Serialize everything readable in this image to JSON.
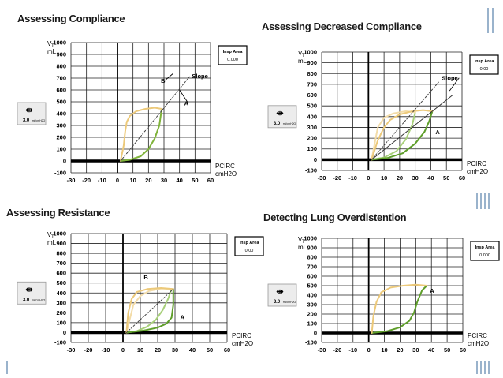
{
  "slide": {
    "accent_color": "#9ab3cc"
  },
  "chart_data": [
    {
      "type": "line",
      "title": "Assessing Compliance",
      "ylabel": "VT mL",
      "xlabel": "PCIRC cmH2O",
      "ylabel_main": "V",
      "ylabel_sub": "T",
      "ylabel_unit": "mL",
      "xlabel_main": "PCIRC",
      "xlabel_unit": "cmH2O",
      "xlim": [
        -30,
        60
      ],
      "ylim": [
        -100,
        1000
      ],
      "x_ticks": [
        "-30",
        "-20",
        "-10",
        "0",
        "10",
        "20",
        "30",
        "40",
        "50",
        "60"
      ],
      "y_ticks": [
        "-100",
        "0",
        "100",
        "200",
        "300",
        "400",
        "500",
        "600",
        "700",
        "800",
        "900",
        "1000"
      ],
      "grid": true,
      "insp_box": {
        "label": "Insp Area",
        "value": "0.000"
      },
      "scale_widget": {
        "value": "3.0",
        "unit": "ml/cmH2O",
        "icon": "scale-arrows-icon"
      },
      "series": [
        {
          "role": "inspiration",
          "color": "#7fb33a",
          "x": [
            2,
            8,
            15,
            20,
            24,
            27,
            28.5
          ],
          "y": [
            0,
            10,
            40,
            100,
            190,
            300,
            440
          ]
        },
        {
          "role": "expiration",
          "color": "#ecc97a",
          "x": [
            28.5,
            24,
            18,
            12,
            8,
            6,
            5,
            4,
            2
          ],
          "y": [
            440,
            450,
            440,
            420,
            380,
            330,
            250,
            130,
            0
          ]
        },
        {
          "role": "slope",
          "style": "dashed",
          "x": [
            2,
            47
          ],
          "y": [
            0,
            720
          ]
        }
      ],
      "annotations": [
        {
          "text": "Slope",
          "x": 48,
          "y": 720
        },
        {
          "text": "B",
          "x": 28,
          "y": 680,
          "arrow_to": [
            36,
            740
          ]
        },
        {
          "text": "A",
          "x": 43,
          "y": 490,
          "arrow_to": [
            40,
            600
          ]
        }
      ]
    },
    {
      "type": "line",
      "title": "Assessing Decreased Compliance",
      "ylabel_main": "V",
      "ylabel_sub": "T",
      "ylabel_unit": "mL",
      "xlabel_main": "PCIRC",
      "xlabel_unit": "cmH2O",
      "xlim": [
        -30,
        60
      ],
      "ylim": [
        -100,
        1000
      ],
      "x_ticks": [
        "-30",
        "-20",
        "-10",
        "0",
        "10",
        "20",
        "30",
        "40",
        "50",
        "60"
      ],
      "y_ticks": [
        "-100",
        "0",
        "100",
        "200",
        "300",
        "400",
        "500",
        "600",
        "700",
        "800",
        "900",
        "1000"
      ],
      "grid": true,
      "insp_box": {
        "label": "Insp Area",
        "value": "0.00"
      },
      "scale_widget": {
        "value": "3.0",
        "unit": "ml/cmH2O",
        "icon": "scale-arrows-icon"
      },
      "series": [
        {
          "role": "inspiration-baseline",
          "color": "#a8d07a",
          "x": [
            2,
            10,
            18,
            24,
            28,
            30
          ],
          "y": [
            0,
            20,
            80,
            190,
            320,
            440
          ]
        },
        {
          "role": "expiration-baseline",
          "color": "#f3dca8",
          "x": [
            30,
            24,
            16,
            10,
            6,
            4,
            2
          ],
          "y": [
            440,
            450,
            430,
            390,
            300,
            150,
            0
          ]
        },
        {
          "role": "inspiration",
          "color": "#5e9e2a",
          "x": [
            2,
            12,
            22,
            30,
            36,
            39,
            41
          ],
          "y": [
            0,
            15,
            60,
            150,
            260,
            360,
            450
          ]
        },
        {
          "role": "expiration",
          "color": "#ecc97a",
          "x": [
            41,
            35,
            28,
            20,
            14,
            10,
            6,
            2
          ],
          "y": [
            450,
            460,
            450,
            420,
            370,
            300,
            180,
            0
          ]
        },
        {
          "role": "slope-old",
          "style": "dashed",
          "x": [
            2,
            45
          ],
          "y": [
            0,
            720
          ]
        },
        {
          "role": "slope-new",
          "style": "solid",
          "x": [
            2,
            54
          ],
          "y": [
            0,
            600
          ]
        }
      ],
      "annotations": [
        {
          "text": "Slope",
          "x": 47,
          "y": 760,
          "arrow_to": [
            52,
            640
          ]
        },
        {
          "text": "A",
          "x": 43,
          "y": 260
        }
      ]
    },
    {
      "type": "line",
      "title": "Assessing Resistance",
      "ylabel_main": "V",
      "ylabel_sub": "T",
      "ylabel_unit": "mL",
      "xlabel_main": "PCIRC",
      "xlabel_unit": "cmH2O",
      "xlim": [
        -30,
        60
      ],
      "ylim": [
        -100,
        1000
      ],
      "x_ticks": [
        "-30",
        "-20",
        "-10",
        "0",
        "10",
        "20",
        "30",
        "40",
        "50",
        "60"
      ],
      "y_ticks": [
        "-100",
        "0",
        "100",
        "200",
        "300",
        "400",
        "500",
        "600",
        "700",
        "800",
        "900",
        "1000"
      ],
      "grid": true,
      "insp_box": {
        "label": "Insp Area",
        "value": "0.00"
      },
      "scale_widget": {
        "value": "3.0",
        "unit": "ml/cmH2O",
        "icon": "scale-arrows-icon"
      },
      "series": [
        {
          "role": "inspiration-baseline",
          "color": "#a8d07a",
          "x": [
            2,
            8,
            14,
            19,
            23,
            26,
            28
          ],
          "y": [
            0,
            15,
            60,
            130,
            230,
            340,
            440
          ]
        },
        {
          "role": "expiration-baseline",
          "color": "#f3dca8",
          "x": [
            28,
            22,
            15,
            10,
            6,
            4,
            2
          ],
          "y": [
            440,
            445,
            420,
            370,
            280,
            140,
            0
          ]
        },
        {
          "role": "inspiration",
          "color": "#5e9e2a",
          "x": [
            2,
            12,
            20,
            25,
            28,
            29,
            29
          ],
          "y": [
            0,
            20,
            50,
            90,
            150,
            280,
            440
          ]
        },
        {
          "role": "expiration",
          "color": "#ecc97a",
          "x": [
            29,
            22,
            14,
            8,
            5,
            3,
            2
          ],
          "y": [
            440,
            450,
            440,
            410,
            340,
            200,
            0
          ]
        },
        {
          "role": "slope",
          "style": "dashed",
          "x": [
            2,
            29
          ],
          "y": [
            0,
            440
          ]
        }
      ],
      "annotations": [
        {
          "text": "B",
          "x": 12,
          "y": 560
        },
        {
          "text": "A",
          "x": 33,
          "y": 160
        }
      ]
    },
    {
      "type": "line",
      "title": "Detecting Lung Overdistention",
      "ylabel_main": "V",
      "ylabel_sub": "T",
      "ylabel_unit": "mL",
      "xlabel_main": "PCIRC",
      "xlabel_unit": "cmH2O",
      "xlim": [
        -30,
        60
      ],
      "ylim": [
        -100,
        1000
      ],
      "x_ticks": [
        "-30",
        "-20",
        "-10",
        "0",
        "10",
        "20",
        "30",
        "40",
        "50",
        "60"
      ],
      "y_ticks": [
        "-100",
        "0",
        "100",
        "200",
        "300",
        "400",
        "500",
        "600",
        "700",
        "800",
        "900",
        "1000"
      ],
      "grid": true,
      "insp_box": {
        "label": "Insp Area",
        "value": "0.000"
      },
      "scale_widget": {
        "value": "3.0",
        "unit": "ml/cmH2O",
        "icon": "scale-arrows-icon"
      },
      "series": [
        {
          "role": "inspiration",
          "color": "#5e9e2a",
          "x": [
            2,
            12,
            20,
            26,
            29,
            31,
            34,
            37
          ],
          "y": [
            0,
            20,
            60,
            130,
            220,
            330,
            450,
            500
          ]
        },
        {
          "role": "expiration",
          "color": "#ecc97a",
          "x": [
            37,
            30,
            22,
            14,
            8,
            5,
            3,
            2
          ],
          "y": [
            500,
            510,
            500,
            480,
            430,
            330,
            180,
            0
          ]
        }
      ],
      "annotations": [
        {
          "text": "A",
          "x": 39,
          "y": 450
        }
      ]
    }
  ]
}
